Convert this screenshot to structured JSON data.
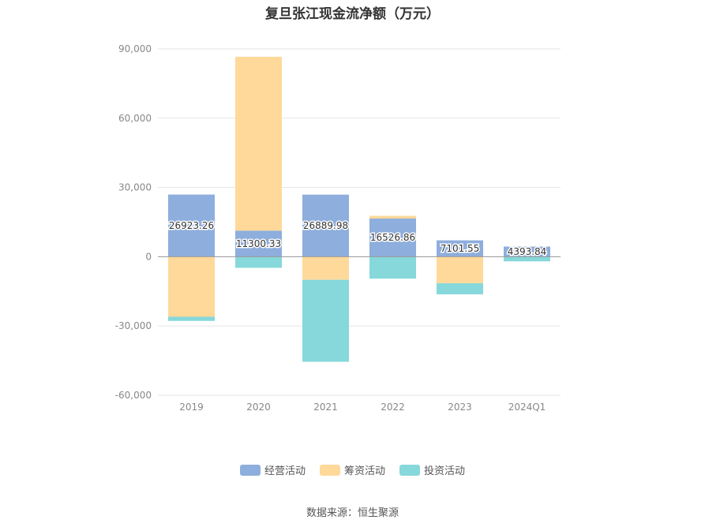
{
  "chart_data": {
    "type": "bar",
    "stacked": true,
    "title": "复旦张江现金流净额（万元）",
    "categories": [
      "2019",
      "2020",
      "2021",
      "2022",
      "2023",
      "2024Q1"
    ],
    "series": [
      {
        "name": "经营活动",
        "color": "#8eaedd",
        "values": [
          26923.26,
          11300.33,
          26889.98,
          16526.86,
          7101.55,
          4393.84
        ]
      },
      {
        "name": "筹资活动",
        "color": "#ffd999",
        "values": [
          -26000,
          75300,
          -10000,
          1200,
          -11500,
          0
        ]
      },
      {
        "name": "投资活动",
        "color": "#86d8da",
        "values": [
          -1800,
          -4800,
          -35500,
          -9500,
          -4800,
          -2000
        ]
      }
    ],
    "data_labels": [
      "26923.26",
      "11300.33",
      "26889.98",
      "16526.86",
      "7101.55",
      "4393.84"
    ],
    "ylim": [
      -60000,
      90000
    ],
    "yticks": [
      90000,
      60000,
      30000,
      0,
      -30000,
      -60000
    ],
    "ytick_labels": [
      "90,000",
      "60,000",
      "30,000",
      "0",
      "-30,000",
      "-60,000"
    ],
    "grid": true,
    "legend_position": "bottom"
  },
  "footer": {
    "source": "数据来源：恒生聚源"
  }
}
